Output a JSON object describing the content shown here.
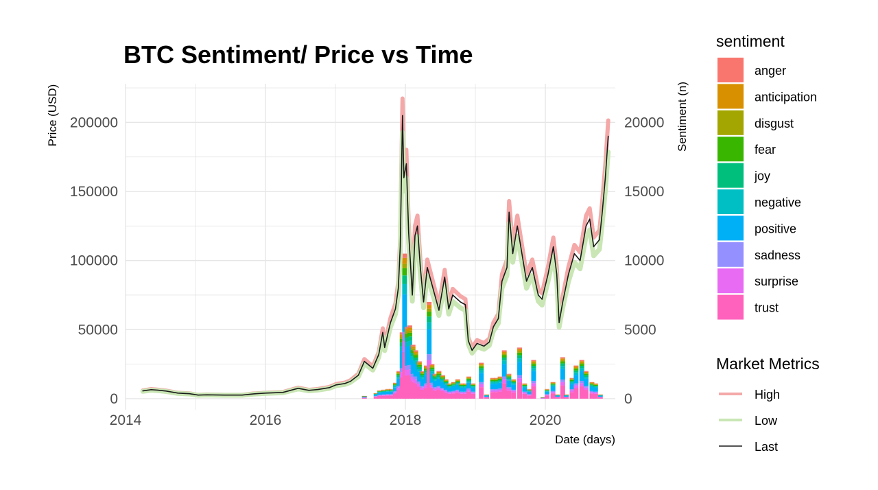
{
  "chart_data": {
    "type": "bar+line",
    "title": "BTC Sentiment/ Price vs Time",
    "xlabel": "Date (days)",
    "ylabel": "Price (USD)",
    "y2label": "Sentiment (n)",
    "xlim": [
      "2014-01-01",
      "2021-01-01"
    ],
    "x_ticks": [
      "2014",
      "2016",
      "2018",
      "2020"
    ],
    "ylim": [
      -8000,
      228000
    ],
    "y_ticks": [
      "0",
      "50000",
      "100000",
      "150000",
      "200000"
    ],
    "y2lim": [
      -800,
      22800
    ],
    "y2_ticks": [
      "0",
      "5000",
      "10000",
      "15000",
      "20000"
    ],
    "grid": true,
    "legend_position": "right",
    "sentiment_legend_title": "sentiment",
    "sentiment_categories": [
      "anger",
      "anticipation",
      "disgust",
      "fear",
      "joy",
      "negative",
      "positive",
      "sadness",
      "surprise",
      "trust"
    ],
    "sentiment_colors": [
      "#F8766D",
      "#D89000",
      "#A3A500",
      "#39B600",
      "#00BF7D",
      "#00BFC4",
      "#00B0F6",
      "#9590FF",
      "#E76BF3",
      "#FF62BC"
    ],
    "sentiment_totals": [
      [
        "2017-06-01",
        200
      ],
      [
        "2017-08-01",
        400
      ],
      [
        "2017-08-20",
        600
      ],
      [
        "2017-09-10",
        650
      ],
      [
        "2017-10-01",
        700
      ],
      [
        "2017-10-20",
        700
      ],
      [
        "2017-11-10",
        1150
      ],
      [
        "2017-11-28",
        2000
      ],
      [
        "2017-12-15",
        4800
      ],
      [
        "2017-12-28",
        10500
      ],
      [
        "2018-01-10",
        5200
      ],
      [
        "2018-01-24",
        5300
      ],
      [
        "2018-02-10",
        3900
      ],
      [
        "2018-02-24",
        3500
      ],
      [
        "2018-03-15",
        2700
      ],
      [
        "2018-04-01",
        2000
      ],
      [
        "2018-04-20",
        2400
      ],
      [
        "2018-05-05",
        7000
      ],
      [
        "2018-05-20",
        2500
      ],
      [
        "2018-06-05",
        1800
      ],
      [
        "2018-06-25",
        2000
      ],
      [
        "2018-07-15",
        1700
      ],
      [
        "2018-08-01",
        1400
      ],
      [
        "2018-08-20",
        1100
      ],
      [
        "2018-09-10",
        1200
      ],
      [
        "2018-10-01",
        1400
      ],
      [
        "2018-10-20",
        1100
      ],
      [
        "2018-11-10",
        1100
      ],
      [
        "2018-11-28",
        1600
      ],
      [
        "2018-12-20",
        1100
      ],
      [
        "2019-02-01",
        2600
      ],
      [
        "2019-03-01",
        300
      ],
      [
        "2019-04-01",
        1500
      ],
      [
        "2019-04-20",
        1500
      ],
      [
        "2019-05-10",
        1600
      ],
      [
        "2019-06-01",
        3500
      ],
      [
        "2019-06-25",
        1800
      ],
      [
        "2019-07-20",
        1400
      ],
      [
        "2019-08-20",
        3700
      ],
      [
        "2019-09-15",
        1100
      ],
      [
        "2019-10-10",
        700
      ],
      [
        "2019-11-01",
        2800
      ],
      [
        "2019-12-20",
        100
      ],
      [
        "2020-01-10",
        700
      ],
      [
        "2020-02-10",
        1200
      ],
      [
        "2020-03-05",
        300
      ],
      [
        "2020-04-01",
        3000
      ],
      [
        "2020-04-20",
        300
      ],
      [
        "2020-05-20",
        1500
      ],
      [
        "2020-06-10",
        2400
      ],
      [
        "2020-07-10",
        2800
      ],
      [
        "2020-08-01",
        2000
      ],
      [
        "2020-09-01",
        1200
      ],
      [
        "2020-09-20",
        1100
      ],
      [
        "2020-10-15",
        300
      ]
    ],
    "market_legend_title": "Market Metrics",
    "market_series": [
      {
        "name": "High",
        "color": "#F4A8A8",
        "width": 6,
        "offset": 0.06
      },
      {
        "name": "Low",
        "color": "#C9E6B4",
        "width": 7,
        "offset": -0.06
      },
      {
        "name": "Last",
        "color": "#1a1a1a",
        "width": 1.6,
        "offset": 0
      }
    ],
    "price_last": [
      [
        "2014-04-01",
        5600
      ],
      [
        "2014-05-15",
        6500
      ],
      [
        "2014-06-15",
        6200
      ],
      [
        "2014-08-01",
        5500
      ],
      [
        "2014-10-01",
        4000
      ],
      [
        "2014-12-01",
        3600
      ],
      [
        "2015-01-15",
        2600
      ],
      [
        "2015-03-01",
        2800
      ],
      [
        "2015-06-01",
        2600
      ],
      [
        "2015-09-01",
        2600
      ],
      [
        "2015-11-01",
        3500
      ],
      [
        "2016-01-01",
        4000
      ],
      [
        "2016-04-01",
        4500
      ],
      [
        "2016-06-20",
        7500
      ],
      [
        "2016-08-15",
        6000
      ],
      [
        "2016-10-01",
        6600
      ],
      [
        "2016-12-01",
        8000
      ],
      [
        "2017-01-05",
        10000
      ],
      [
        "2017-02-20",
        11000
      ],
      [
        "2017-03-20",
        12500
      ],
      [
        "2017-05-01",
        17000
      ],
      [
        "2017-06-01",
        27000
      ],
      [
        "2017-07-15",
        22000
      ],
      [
        "2017-08-15",
        32000
      ],
      [
        "2017-09-05",
        48000
      ],
      [
        "2017-09-15",
        37000
      ],
      [
        "2017-10-15",
        55000
      ],
      [
        "2017-11-10",
        65000
      ],
      [
        "2017-11-25",
        80000
      ],
      [
        "2017-12-05",
        110000
      ],
      [
        "2017-12-17",
        205000
      ],
      [
        "2017-12-24",
        160000
      ],
      [
        "2018-01-06",
        170000
      ],
      [
        "2018-01-18",
        120000
      ],
      [
        "2018-02-06",
        75000
      ],
      [
        "2018-02-20",
        118000
      ],
      [
        "2018-03-05",
        125000
      ],
      [
        "2018-03-20",
        95000
      ],
      [
        "2018-04-06",
        70000
      ],
      [
        "2018-04-25",
        95000
      ],
      [
        "2018-05-15",
        85000
      ],
      [
        "2018-06-25",
        64000
      ],
      [
        "2018-07-25",
        88000
      ],
      [
        "2018-08-15",
        65000
      ],
      [
        "2018-09-05",
        75000
      ],
      [
        "2018-10-15",
        70000
      ],
      [
        "2018-11-10",
        68000
      ],
      [
        "2018-11-25",
        42000
      ],
      [
        "2018-12-15",
        35000
      ],
      [
        "2019-01-10",
        40000
      ],
      [
        "2019-02-15",
        38000
      ],
      [
        "2019-03-15",
        41000
      ],
      [
        "2019-04-05",
        52000
      ],
      [
        "2019-05-01",
        58000
      ],
      [
        "2019-05-20",
        85000
      ],
      [
        "2019-06-15",
        95000
      ],
      [
        "2019-06-26",
        135000
      ],
      [
        "2019-07-15",
        105000
      ],
      [
        "2019-08-08",
        125000
      ],
      [
        "2019-09-01",
        105000
      ],
      [
        "2019-09-25",
        85000
      ],
      [
        "2019-10-25",
        95000
      ],
      [
        "2019-11-25",
        75000
      ],
      [
        "2019-12-15",
        72000
      ],
      [
        "2020-01-15",
        90000
      ],
      [
        "2020-02-12",
        110000
      ],
      [
        "2020-03-01",
        90000
      ],
      [
        "2020-03-13",
        55000
      ],
      [
        "2020-04-01",
        70000
      ],
      [
        "2020-05-01",
        90000
      ],
      [
        "2020-06-01",
        105000
      ],
      [
        "2020-07-01",
        100000
      ],
      [
        "2020-08-01",
        125000
      ],
      [
        "2020-08-20",
        130000
      ],
      [
        "2020-09-10",
        110000
      ],
      [
        "2020-10-10",
        115000
      ],
      [
        "2020-10-25",
        135000
      ],
      [
        "2020-11-10",
        160000
      ],
      [
        "2020-11-25",
        190000
      ]
    ]
  }
}
